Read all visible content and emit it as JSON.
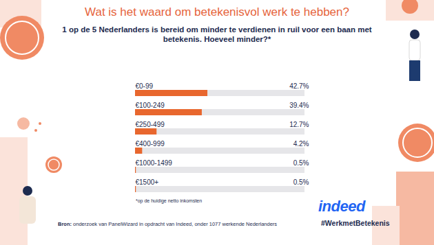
{
  "chart_data": {
    "type": "bar",
    "orientation": "horizontal",
    "title": "Wat is het waard om betekenisvol werk te hebben?",
    "subtitle": "1 op de 5 Nederlanders is bereid om minder te verdienen in ruil voor een baan met betekenis. Hoeveel minder?*",
    "categories": [
      "€0-99",
      "€100-249",
      "€250-499",
      "€400-999",
      "€1000-1499",
      "€1500+"
    ],
    "values": [
      42.7,
      39.4,
      12.7,
      4.2,
      0.5,
      0.5
    ],
    "value_labels": [
      "42.7%",
      "39.4%",
      "12.7%",
      "4.2%",
      "0.5%",
      "0.5%"
    ],
    "xlim": [
      0,
      100
    ],
    "color": "#e8672e",
    "data_labels": true,
    "tick_labels": false,
    "note": "*op de huidige netto inkomsten",
    "source_label": "Bron:",
    "source": "onderzoek van PanelWizard in opdracht van Indeed, onder 1077 werkende Nederlanders",
    "logo": "indeed",
    "hashtag": "#WerkmetBetekenis"
  }
}
